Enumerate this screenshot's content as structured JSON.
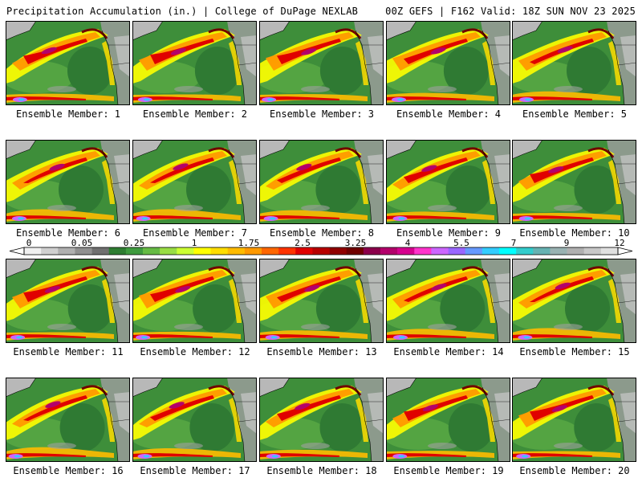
{
  "header": {
    "left": "Precipitation Accumulation (in.) | College of DuPage NEXLAB",
    "right": "00Z GEFS | F162 Valid: 18Z SUN NOV 23 2025"
  },
  "panels": [
    {
      "label": "Ensemble Member: 1"
    },
    {
      "label": "Ensemble Member: 2"
    },
    {
      "label": "Ensemble Member: 3"
    },
    {
      "label": "Ensemble Member: 4"
    },
    {
      "label": "Ensemble Member: 5"
    },
    {
      "label": "Ensemble Member: 6"
    },
    {
      "label": "Ensemble Member: 7"
    },
    {
      "label": "Ensemble Member: 8"
    },
    {
      "label": "Ensemble Member: 9"
    },
    {
      "label": "Ensemble Member: 10"
    },
    {
      "label": "Ensemble Member: 11"
    },
    {
      "label": "Ensemble Member: 12"
    },
    {
      "label": "Ensemble Member: 13"
    },
    {
      "label": "Ensemble Member: 14"
    },
    {
      "label": "Ensemble Member: 15"
    },
    {
      "label": "Ensemble Member: 16"
    },
    {
      "label": "Ensemble Member: 17"
    },
    {
      "label": "Ensemble Member: 18"
    },
    {
      "label": "Ensemble Member: 19"
    },
    {
      "label": "Ensemble Member: 20"
    }
  ],
  "colorbar": {
    "tick_labels": [
      "0",
      "0.05",
      "0.25",
      "1",
      "1.75",
      "2.5",
      "3.25",
      "4",
      "5.5",
      "7",
      "9",
      "12"
    ],
    "colors": [
      "#f0f0f0",
      "#d0d0d0",
      "#b0b0b0",
      "#909090",
      "#707070",
      "#2e7d32",
      "#3f9b3f",
      "#66bb44",
      "#99dd44",
      "#ccff33",
      "#ffff00",
      "#ffdd00",
      "#ffbb00",
      "#ff9900",
      "#ff6600",
      "#ff3300",
      "#e00000",
      "#b80000",
      "#900000",
      "#700000",
      "#8b004b",
      "#b3006b",
      "#d6008f",
      "#ff33cc",
      "#cc66ff",
      "#9966ff",
      "#6699ff",
      "#33ccff",
      "#00ffff",
      "#33cccc",
      "#66b2b2",
      "#99b2b2",
      "#b0b0b0",
      "#c8c8c8",
      "#e0e0e0"
    ]
  }
}
